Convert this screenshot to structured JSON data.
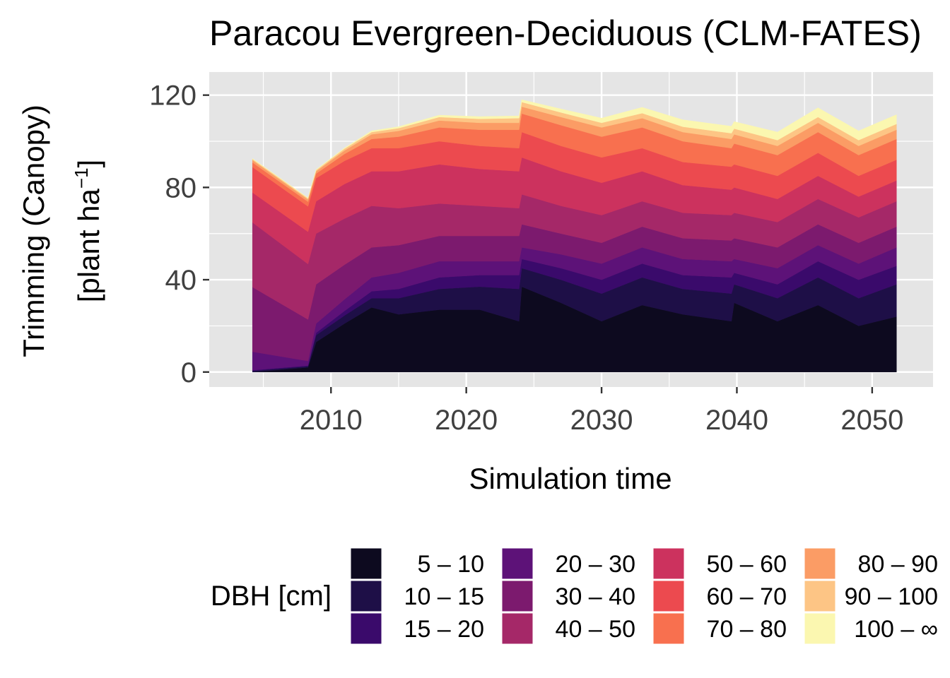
{
  "chart_data": {
    "type": "area",
    "stacked": true,
    "title": "Paracou Evergreen-Deciduous (CLM-FATES)",
    "xlabel": "Simulation time",
    "ylabel_line1": "Trimming (Canopy)",
    "ylabel_line2_main": "[plant ha",
    "ylabel_line2_sup": "−1",
    "ylabel_line2_end": "]",
    "xlim": [
      2001.0,
      2054.5
    ],
    "ylim": [
      -6.5,
      130
    ],
    "x_ticks": [
      2010,
      2020,
      2030,
      2040,
      2050
    ],
    "y_ticks": [
      0,
      40,
      80,
      120
    ],
    "grid": true,
    "panel_background": "#e5e5e5",
    "grid_color": "#ffffff",
    "legend_title": "DBH [cm]",
    "legend_position": "bottom",
    "x": [
      2004.2,
      2008.3,
      2008.9,
      2011,
      2013,
      2015,
      2018,
      2021,
      2023.9,
      2024.1,
      2027,
      2030,
      2033,
      2036,
      2039.6,
      2039.8,
      2043,
      2046,
      2049,
      2051.8
    ],
    "series": [
      {
        "name": "5 – 10",
        "color": "#0d0a1f",
        "values": [
          0,
          2,
          13,
          21,
          28,
          25,
          27,
          27,
          22,
          37,
          30,
          22,
          29,
          25,
          22,
          30,
          22,
          29,
          20,
          24
        ]
      },
      {
        "name": "10 – 15",
        "color": "#1e0f47",
        "values": [
          0.5,
          0.5,
          3,
          3.5,
          4,
          7,
          9,
          10,
          14,
          8,
          10,
          12,
          12,
          11,
          12,
          8,
          10,
          12,
          12,
          14
        ]
      },
      {
        "name": "15 – 20",
        "color": "#3a0a6b",
        "values": [
          0.3,
          0.3,
          1,
          2,
          3,
          4,
          5,
          5,
          6,
          4,
          5,
          6,
          6,
          6,
          7,
          5,
          6,
          7,
          8,
          8
        ]
      },
      {
        "name": "20 – 30",
        "color": "#5d1278",
        "values": [
          8,
          2,
          4,
          5,
          6,
          7,
          7,
          6,
          6,
          5,
          6,
          7,
          7,
          7,
          7,
          6,
          7,
          7,
          7,
          8
        ]
      },
      {
        "name": "30 – 40",
        "color": "#7c1a6e",
        "values": [
          28,
          18,
          17,
          15,
          13,
          12,
          11,
          11,
          11,
          10,
          9,
          9,
          9,
          9,
          9,
          9,
          9,
          9,
          9,
          9
        ]
      },
      {
        "name": "40 – 50",
        "color": "#a52868",
        "values": [
          28,
          24,
          22,
          20,
          18,
          16,
          14,
          13,
          12,
          13,
          12,
          12,
          11,
          11,
          11,
          11,
          11,
          11,
          11,
          11
        ]
      },
      {
        "name": "50 – 60",
        "color": "#cc325e",
        "values": [
          13,
          14,
          14,
          15,
          15,
          16,
          17,
          16,
          16,
          16,
          15,
          14,
          13,
          12,
          11,
          11,
          10,
          10,
          9,
          9
        ]
      },
      {
        "name": "60 – 70",
        "color": "#ec4a4f",
        "values": [
          11,
          11,
          10,
          10,
          10,
          10,
          10,
          10,
          10,
          11,
          11,
          11,
          10,
          10,
          10,
          10,
          10,
          10,
          9,
          9
        ]
      },
      {
        "name": "70 – 80",
        "color": "#f8704f",
        "values": [
          2,
          2,
          2,
          3,
          4,
          5,
          6,
          7,
          8,
          8,
          9,
          9,
          9,
          9,
          8,
          9,
          9,
          9,
          9,
          9
        ]
      },
      {
        "name": "80 – 90",
        "color": "#fb9c65",
        "values": [
          1,
          1,
          1,
          1.5,
          2,
          2.5,
          3,
          3,
          3,
          3,
          3.5,
          4,
          4,
          4,
          4,
          4,
          4,
          4,
          4,
          4
        ]
      },
      {
        "name": "90 – 100",
        "color": "#fdc585",
        "values": [
          0.5,
          0.5,
          0.5,
          0.8,
          1,
          1.2,
          1.5,
          1.7,
          2,
          2,
          2,
          2,
          2.2,
          2.3,
          2.5,
          2.5,
          2.5,
          2.5,
          2.5,
          2.5
        ]
      },
      {
        "name": "100 – ∞",
        "color": "#fbf7b0",
        "values": [
          0.2,
          0.2,
          0.2,
          0.3,
          0.5,
          0.6,
          0.8,
          1,
          1,
          1,
          1.5,
          2,
          2.5,
          3,
          3,
          3,
          3.5,
          4,
          4,
          4
        ]
      }
    ]
  }
}
